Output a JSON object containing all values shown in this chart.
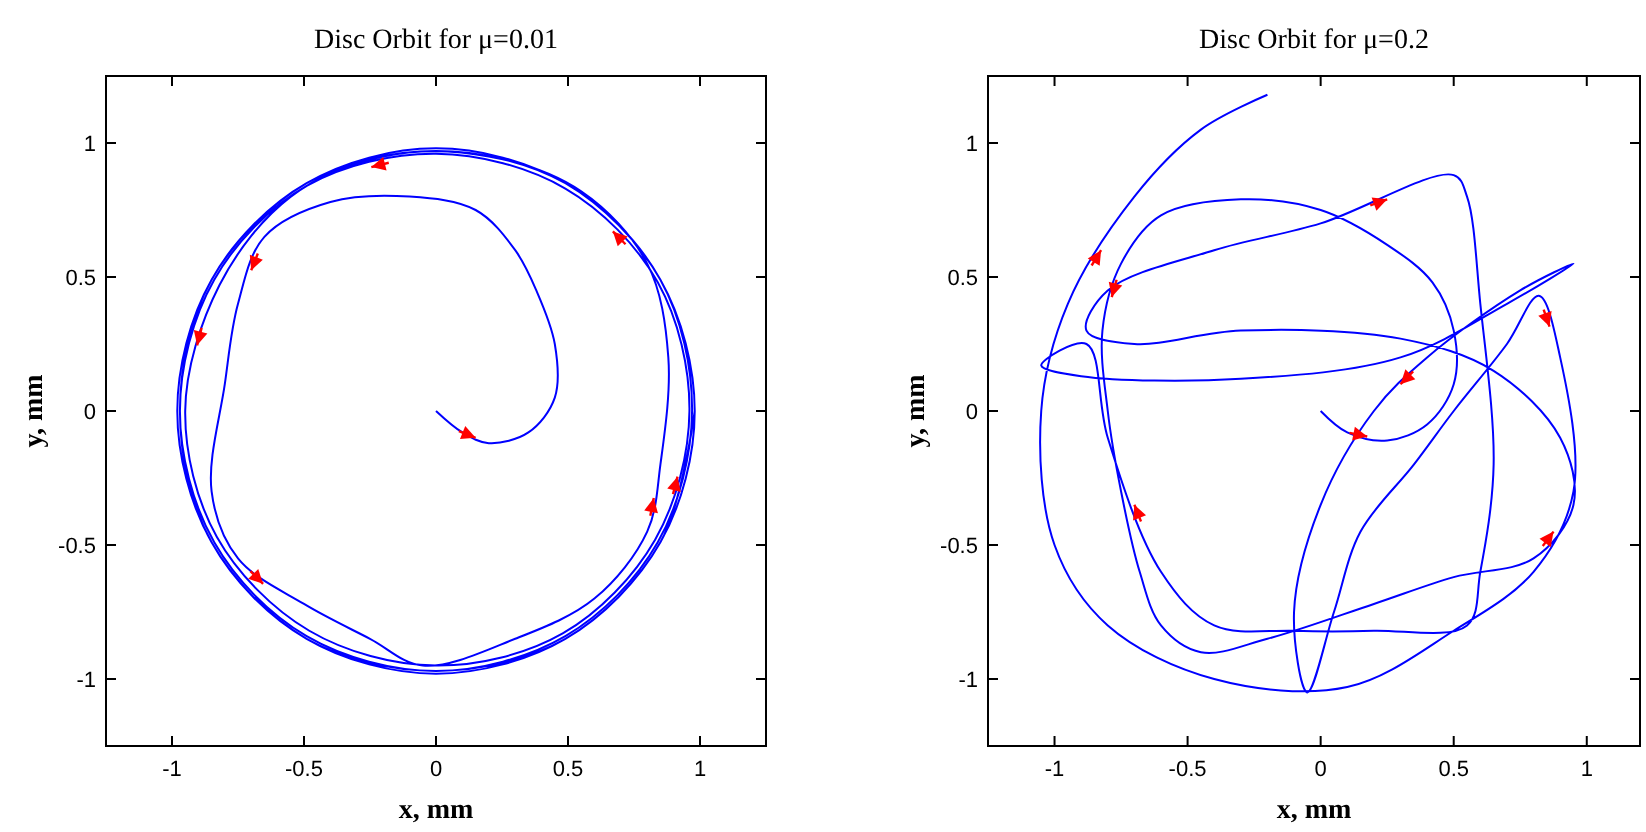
{
  "chart_data": [
    {
      "type": "line",
      "title": "Disc Orbit for μ=0.01",
      "xlabel": "x, mm",
      "ylabel": "y, mm",
      "xlim": [
        -1.25,
        1.25
      ],
      "ylim": [
        -1.25,
        1.25
      ],
      "xticks": [
        -1,
        -0.5,
        0,
        0.5,
        1
      ],
      "yticks": [
        -1,
        -0.5,
        0,
        0.5,
        1
      ],
      "grid": false,
      "marker": "none",
      "line_style": "solid",
      "series": [
        {
          "color": "#0000ff",
          "x": [
            0,
            0.1,
            0.2,
            0.35,
            0.45,
            0.45,
            0.38,
            0.3,
            0.15,
            -0.1,
            -0.4,
            -0.65,
            -0.75,
            -0.8,
            -0.85,
            -0.75,
            -0.5,
            -0.25,
            -0.05,
            0.3,
            0.6,
            0.8,
            0.85,
            0.88,
            0.8,
            0.55,
            0.2,
            -0.2,
            -0.55,
            -0.82,
            -0.95,
            -0.83,
            -0.48,
            0,
            0.48,
            0.83,
            0.96,
            0.84,
            0.49,
            0,
            -0.49,
            -0.84,
            -0.97,
            -0.84,
            -0.49,
            0,
            0.49,
            0.84,
            0.97,
            0.85,
            0.49,
            0,
            -0.49,
            -0.85,
            -0.97,
            -0.85,
            -0.49,
            0,
            0.49,
            0.85,
            0.98,
            0.85,
            0.49,
            0,
            -0.49,
            -0.85,
            -0.98,
            -0.85,
            -0.49,
            0,
            0.49,
            0.85,
            0.98
          ],
          "values": [
            0,
            -0.08,
            -0.12,
            -0.08,
            0.05,
            0.25,
            0.45,
            0.6,
            0.75,
            0.8,
            0.78,
            0.65,
            0.4,
            0.1,
            -0.3,
            -0.55,
            -0.72,
            -0.85,
            -0.95,
            -0.85,
            -0.7,
            -0.45,
            -0.2,
            0.2,
            0.55,
            0.82,
            0.95,
            0.95,
            0.8,
            0.47,
            0,
            -0.47,
            -0.82,
            -0.95,
            -0.83,
            -0.48,
            0,
            0.48,
            0.83,
            0.96,
            0.84,
            0.49,
            0,
            -0.49,
            -0.84,
            -0.97,
            -0.84,
            -0.49,
            0,
            0.49,
            0.85,
            0.97,
            0.85,
            0.49,
            0,
            -0.49,
            -0.85,
            -0.97,
            -0.85,
            -0.49,
            0,
            0.49,
            0.85,
            0.98,
            0.85,
            0.49,
            0,
            -0.49,
            -0.85,
            -0.98,
            -0.85,
            -0.49,
            0
          ]
        }
      ]
    },
    {
      "type": "line",
      "title": "Disc Orbit for μ=0.2",
      "xlabel": "x, mm",
      "ylabel": "y, mm",
      "xlim": [
        -1.25,
        1.2
      ],
      "ylim": [
        -1.25,
        1.25
      ],
      "xticks": [
        -1,
        -0.5,
        0,
        0.5,
        1
      ],
      "yticks": [
        -1,
        -0.5,
        0,
        0.5,
        1
      ],
      "grid": false,
      "marker": "none",
      "line_style": "solid",
      "series": [
        {
          "color": "#0000ff",
          "x": [
            0,
            0.1,
            0.25,
            0.4,
            0.5,
            0.5,
            0.42,
            0.25,
            0,
            -0.3,
            -0.6,
            -0.75,
            -0.82,
            -0.8,
            -0.75,
            -0.68,
            -0.6,
            -0.45,
            -0.2,
            0.2,
            0.5,
            0.8,
            0.95,
            0.9,
            0.65,
            0.3,
            -0.3,
            -0.7,
            -0.88,
            -0.8,
            -0.4,
            0,
            0.5,
            0.55,
            0.6,
            0.65,
            0.6,
            0.55,
            0.2,
            -0.1,
            -0.4,
            -0.6,
            -0.8,
            -0.88,
            -1.05,
            -0.9,
            -0.3,
            0.3,
            0.7,
            0.95,
            0.75,
            0.4,
            0.2,
            0,
            -0.1,
            -0.05,
            0.05,
            0.15,
            0.35,
            0.5,
            0.7,
            0.82,
            0.9,
            0.95,
            0.8,
            0.5,
            0.1,
            -0.4,
            -0.8,
            -1.0,
            -1.05,
            -0.95,
            -0.7,
            -0.45,
            -0.2
          ],
          "values": [
            0,
            -0.08,
            -0.11,
            -0.05,
            0.1,
            0.3,
            0.48,
            0.62,
            0.75,
            0.79,
            0.73,
            0.55,
            0.3,
            0,
            -0.3,
            -0.6,
            -0.8,
            -0.9,
            -0.85,
            -0.72,
            -0.62,
            -0.55,
            -0.35,
            -0.1,
            0.15,
            0.27,
            0.3,
            0.25,
            0.3,
            0.45,
            0.6,
            0.7,
            0.88,
            0.8,
            0.4,
            -0.2,
            -0.6,
            -0.8,
            -0.82,
            -0.82,
            -0.8,
            -0.6,
            -0.1,
            0.25,
            0.17,
            0.13,
            0.12,
            0.2,
            0.4,
            0.55,
            0.45,
            0.2,
            0,
            -0.35,
            -0.75,
            -1.05,
            -0.75,
            -0.45,
            -0.2,
            0,
            0.25,
            0.43,
            0.2,
            -0.3,
            -0.6,
            -0.82,
            -1.03,
            -1.0,
            -0.8,
            -0.5,
            0,
            0.4,
            0.8,
            1.05,
            1.18
          ]
        }
      ]
    }
  ]
}
